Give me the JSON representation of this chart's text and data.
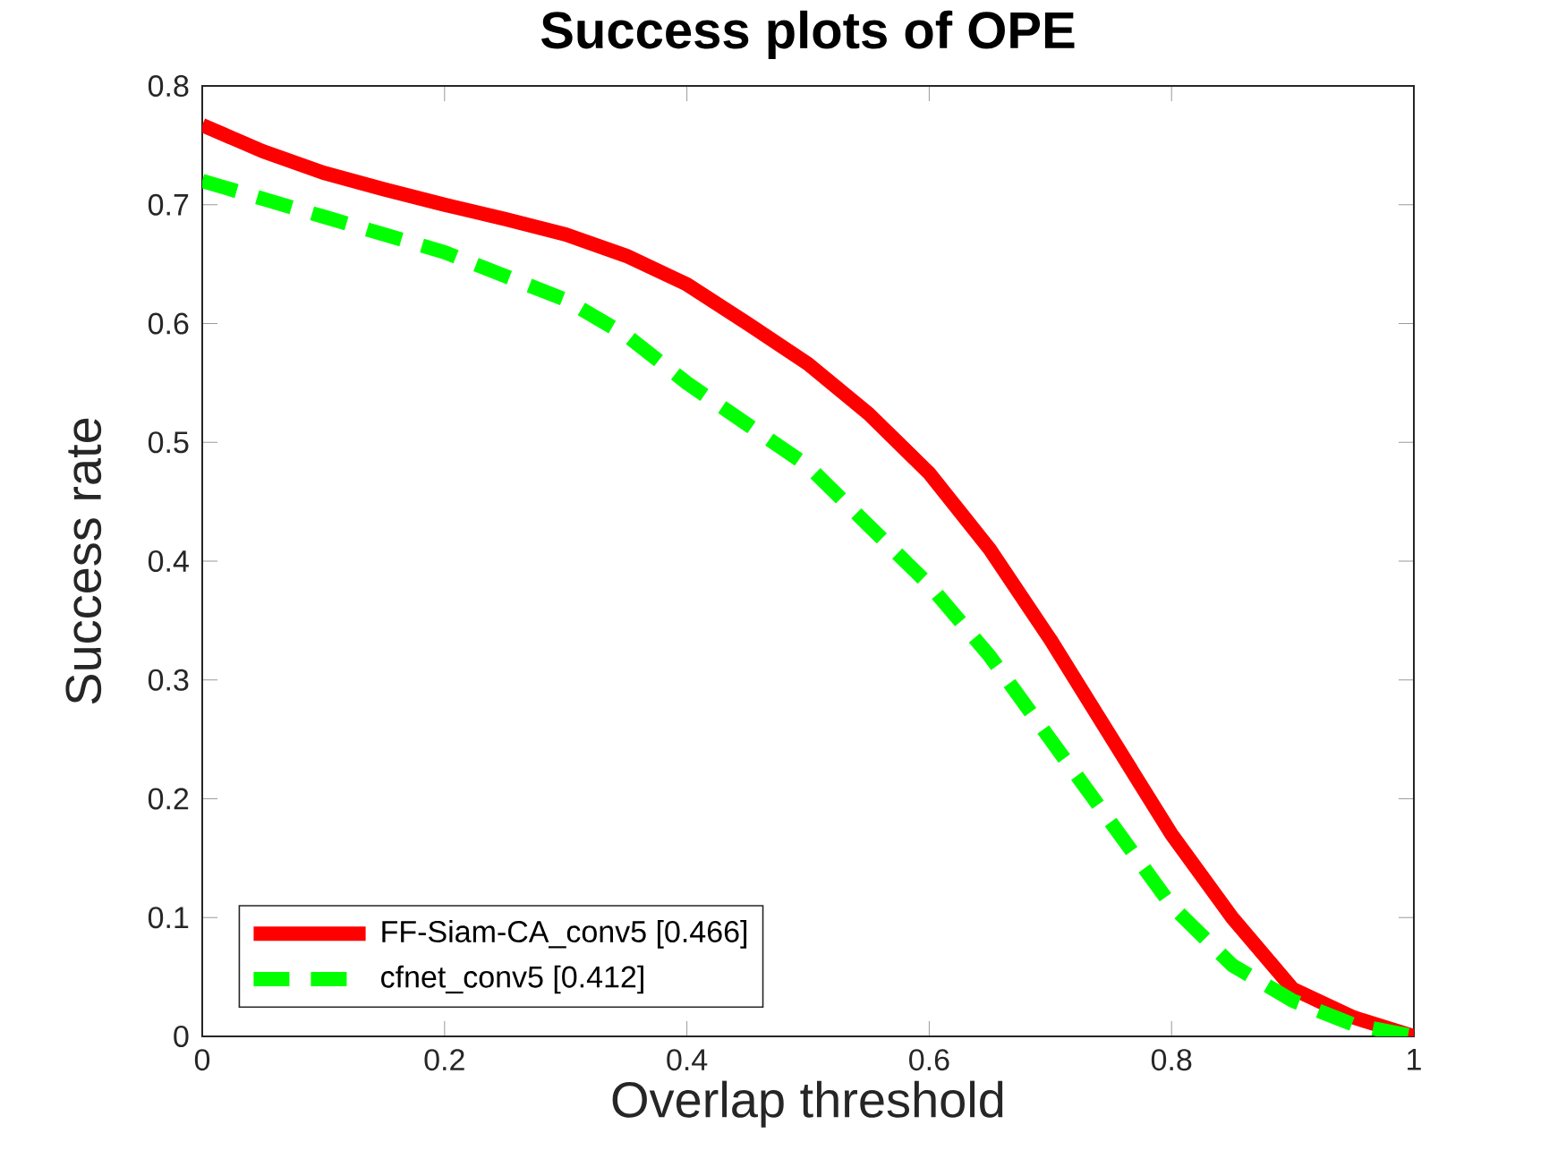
{
  "chart_data": {
    "type": "line",
    "title": "Success plots of OPE",
    "xlabel": "Overlap threshold",
    "ylabel": "Success rate",
    "x": [
      0,
      0.05,
      0.1,
      0.15,
      0.2,
      0.25,
      0.3,
      0.35,
      0.4,
      0.45,
      0.5,
      0.55,
      0.6,
      0.65,
      0.7,
      0.75,
      0.8,
      0.85,
      0.9,
      0.95,
      1
    ],
    "series": [
      {
        "name": "FF-Siam-CA_conv5 [0.466]",
        "color": "#ff0000",
        "line_style": "solid",
        "values": [
          0.767,
          0.745,
          0.727,
          0.713,
          0.7,
          0.688,
          0.675,
          0.657,
          0.633,
          0.6,
          0.566,
          0.524,
          0.474,
          0.41,
          0.334,
          0.252,
          0.17,
          0.1,
          0.04,
          0.016,
          0
        ]
      },
      {
        "name": "cfnet_conv5 [0.412]",
        "color": "#00ff00",
        "line_style": "dashed",
        "values": [
          0.72,
          0.705,
          0.69,
          0.675,
          0.66,
          0.64,
          0.62,
          0.59,
          0.55,
          0.515,
          0.48,
          0.43,
          0.38,
          0.32,
          0.25,
          0.18,
          0.11,
          0.06,
          0.03,
          0.01,
          0
        ]
      }
    ],
    "xlim": [
      0,
      1
    ],
    "ylim": [
      0,
      0.8
    ],
    "xticks": [
      0,
      0.2,
      0.4,
      0.6,
      0.8,
      1
    ],
    "yticks": [
      0,
      0.1,
      0.2,
      0.3,
      0.4,
      0.5,
      0.6,
      0.7,
      0.8
    ],
    "grid": false,
    "legend": "bottom left",
    "marker": "none"
  }
}
